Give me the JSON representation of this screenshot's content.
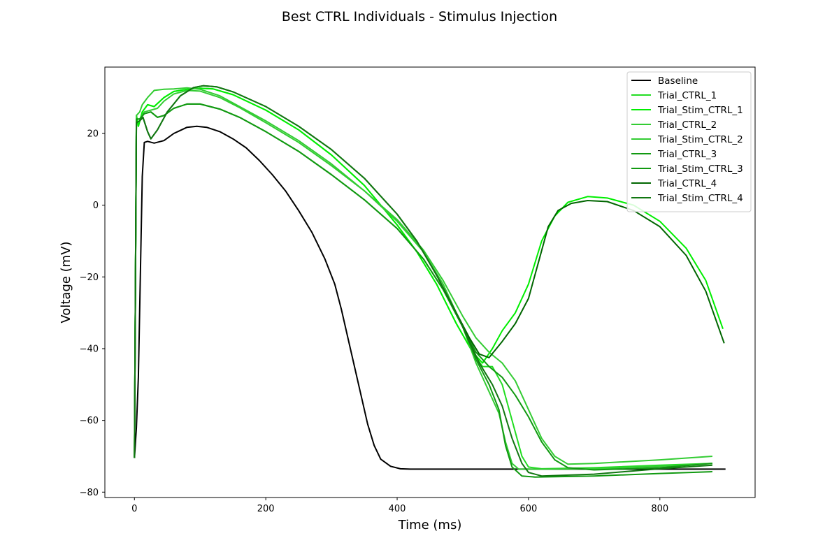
{
  "chart_data": {
    "type": "line",
    "title": "Best CTRL Individuals - Stimulus Injection",
    "xlabel": "Time (ms)",
    "ylabel": "Voltage (mV)",
    "xlim": [
      -45,
      945
    ],
    "ylim": [
      -81.5,
      38.5
    ],
    "xticks": [
      0,
      200,
      400,
      600,
      800
    ],
    "yticks": [
      -80,
      -60,
      -40,
      -20,
      0,
      20
    ],
    "grid": false,
    "legend_position": "top-right",
    "series": [
      {
        "name": "Baseline",
        "color": "#000000",
        "points": [
          [
            0,
            -70.5
          ],
          [
            3,
            -62
          ],
          [
            6,
            -48
          ],
          [
            9,
            -20
          ],
          [
            12,
            8
          ],
          [
            15,
            17.5
          ],
          [
            20,
            17.8
          ],
          [
            30,
            17.3
          ],
          [
            45,
            18
          ],
          [
            60,
            20
          ],
          [
            80,
            21.7
          ],
          [
            95,
            22
          ],
          [
            110,
            21.7
          ],
          [
            130,
            20.5
          ],
          [
            150,
            18.5
          ],
          [
            170,
            16
          ],
          [
            190,
            12.5
          ],
          [
            210,
            8.5
          ],
          [
            230,
            4
          ],
          [
            250,
            -1.5
          ],
          [
            270,
            -7.5
          ],
          [
            290,
            -15
          ],
          [
            305,
            -22
          ],
          [
            315,
            -29
          ],
          [
            325,
            -37
          ],
          [
            335,
            -45
          ],
          [
            345,
            -53
          ],
          [
            355,
            -61
          ],
          [
            365,
            -67
          ],
          [
            375,
            -70.8
          ],
          [
            390,
            -72.8
          ],
          [
            405,
            -73.5
          ],
          [
            420,
            -73.6
          ],
          [
            500,
            -73.6
          ],
          [
            600,
            -73.6
          ],
          [
            700,
            -73.6
          ],
          [
            800,
            -73.6
          ],
          [
            900,
            -73.6
          ]
        ]
      },
      {
        "name": "Trial_CTRL_1",
        "color": "#22dd22",
        "points": [
          [
            0,
            -70.5
          ],
          [
            3,
            25
          ],
          [
            6,
            22
          ],
          [
            12,
            26
          ],
          [
            20,
            28
          ],
          [
            30,
            27.5
          ],
          [
            45,
            30
          ],
          [
            60,
            31.7
          ],
          [
            80,
            32.3
          ],
          [
            100,
            32.6
          ],
          [
            120,
            32.4
          ],
          [
            150,
            30.8
          ],
          [
            200,
            26.5
          ],
          [
            250,
            21
          ],
          [
            300,
            14
          ],
          [
            350,
            5.5
          ],
          [
            400,
            -5.5
          ],
          [
            430,
            -13
          ],
          [
            460,
            -22
          ],
          [
            490,
            -33
          ],
          [
            515,
            -41
          ],
          [
            530,
            -45
          ],
          [
            545,
            -45
          ],
          [
            560,
            -50
          ],
          [
            575,
            -60
          ],
          [
            590,
            -70
          ],
          [
            600,
            -73
          ],
          [
            620,
            -73.5
          ],
          [
            700,
            -73.2
          ],
          [
            800,
            -72.5
          ],
          [
            880,
            -72
          ]
        ]
      },
      {
        "name": "Trial_Stim_CTRL_1",
        "color": "#00ee00",
        "points": [
          [
            0,
            -70.5
          ],
          [
            3,
            25
          ],
          [
            6,
            22
          ],
          [
            12,
            26
          ],
          [
            20,
            28
          ],
          [
            30,
            27.5
          ],
          [
            45,
            30
          ],
          [
            60,
            31.7
          ],
          [
            80,
            32.3
          ],
          [
            100,
            32.6
          ],
          [
            120,
            32.4
          ],
          [
            150,
            30.8
          ],
          [
            200,
            26.5
          ],
          [
            250,
            21
          ],
          [
            300,
            14
          ],
          [
            350,
            5.5
          ],
          [
            400,
            -5.5
          ],
          [
            430,
            -13
          ],
          [
            460,
            -22
          ],
          [
            490,
            -33
          ],
          [
            515,
            -41
          ],
          [
            530,
            -44
          ],
          [
            545,
            -40
          ],
          [
            560,
            -35
          ],
          [
            580,
            -30
          ],
          [
            600,
            -22
          ],
          [
            620,
            -10
          ],
          [
            640,
            -3
          ],
          [
            660,
            0.8
          ],
          [
            690,
            2.4
          ],
          [
            720,
            2
          ],
          [
            760,
            0
          ],
          [
            800,
            -4.5
          ],
          [
            840,
            -12
          ],
          [
            870,
            -21
          ],
          [
            896,
            -34.5
          ]
        ]
      },
      {
        "name": "Trial_CTRL_2",
        "color": "#33cc33",
        "points": [
          [
            0,
            -70.5
          ],
          [
            3,
            24
          ],
          [
            8,
            24
          ],
          [
            15,
            26
          ],
          [
            25,
            26.5
          ],
          [
            35,
            27
          ],
          [
            45,
            29
          ],
          [
            60,
            31
          ],
          [
            80,
            32
          ],
          [
            100,
            31.8
          ],
          [
            130,
            30
          ],
          [
            160,
            27.2
          ],
          [
            200,
            23
          ],
          [
            250,
            17.5
          ],
          [
            300,
            11
          ],
          [
            350,
            4
          ],
          [
            400,
            -4
          ],
          [
            440,
            -12.5
          ],
          [
            470,
            -21
          ],
          [
            500,
            -31
          ],
          [
            520,
            -37
          ],
          [
            540,
            -41
          ],
          [
            560,
            -44
          ],
          [
            580,
            -49
          ],
          [
            600,
            -57
          ],
          [
            620,
            -65
          ],
          [
            640,
            -70
          ],
          [
            660,
            -72.2
          ],
          [
            700,
            -72
          ],
          [
            800,
            -71
          ],
          [
            880,
            -70
          ]
        ]
      },
      {
        "name": "Trial_Stim_CTRL_2",
        "color": "#33cc33",
        "points": [
          [
            0,
            -70.5
          ],
          [
            3,
            25
          ],
          [
            8,
            26
          ],
          [
            12,
            28
          ],
          [
            20,
            30
          ],
          [
            30,
            32
          ],
          [
            45,
            32.3
          ],
          [
            60,
            32.4
          ],
          [
            80,
            32.7
          ],
          [
            100,
            32.3
          ],
          [
            130,
            30.5
          ],
          [
            160,
            27.5
          ],
          [
            200,
            23.5
          ],
          [
            250,
            18
          ],
          [
            300,
            11.5
          ],
          [
            350,
            4
          ],
          [
            400,
            -4.5
          ],
          [
            440,
            -13
          ],
          [
            470,
            -22
          ],
          [
            500,
            -34
          ],
          [
            520,
            -44
          ],
          [
            540,
            -52
          ],
          [
            555,
            -58
          ],
          [
            565,
            -66
          ],
          [
            575,
            -72
          ],
          [
            585,
            -73.6
          ],
          [
            620,
            -73.6
          ],
          [
            700,
            -73.5
          ],
          [
            800,
            -72.8
          ],
          [
            880,
            -72
          ]
        ]
      },
      {
        "name": "Trial_CTRL_3",
        "color": "#119911",
        "points": [
          [
            0,
            -70.5
          ],
          [
            3,
            24
          ],
          [
            8,
            24
          ],
          [
            15,
            25.5
          ],
          [
            25,
            26
          ],
          [
            35,
            24.5
          ],
          [
            45,
            25
          ],
          [
            60,
            27
          ],
          [
            80,
            28.2
          ],
          [
            100,
            28.2
          ],
          [
            130,
            26.8
          ],
          [
            160,
            24.5
          ],
          [
            200,
            20.5
          ],
          [
            250,
            15
          ],
          [
            300,
            8.5
          ],
          [
            350,
            1.5
          ],
          [
            400,
            -6.5
          ],
          [
            440,
            -15
          ],
          [
            470,
            -23.5
          ],
          [
            500,
            -34
          ],
          [
            520,
            -41
          ],
          [
            540,
            -45
          ],
          [
            560,
            -48
          ],
          [
            580,
            -53
          ],
          [
            600,
            -59
          ],
          [
            620,
            -66
          ],
          [
            640,
            -71
          ],
          [
            660,
            -73.2
          ],
          [
            700,
            -73.8
          ],
          [
            800,
            -73.2
          ],
          [
            880,
            -72
          ]
        ]
      },
      {
        "name": "Trial_Stim_CTRL_3",
        "color": "#119911",
        "points": [
          [
            0,
            -70.5
          ],
          [
            3,
            24
          ],
          [
            8,
            24
          ],
          [
            15,
            25.5
          ],
          [
            25,
            26
          ],
          [
            35,
            24.5
          ],
          [
            45,
            25
          ],
          [
            60,
            27
          ],
          [
            80,
            28.2
          ],
          [
            100,
            28.2
          ],
          [
            130,
            26.8
          ],
          [
            160,
            24.5
          ],
          [
            200,
            20.5
          ],
          [
            250,
            15
          ],
          [
            300,
            8.5
          ],
          [
            350,
            1.5
          ],
          [
            400,
            -6.5
          ],
          [
            440,
            -15
          ],
          [
            470,
            -23.5
          ],
          [
            500,
            -34
          ],
          [
            520,
            -43
          ],
          [
            540,
            -50
          ],
          [
            555,
            -57
          ],
          [
            565,
            -67
          ],
          [
            575,
            -73
          ],
          [
            590,
            -75.5
          ],
          [
            610,
            -75.8
          ],
          [
            700,
            -75.5
          ],
          [
            800,
            -74.8
          ],
          [
            880,
            -74.3
          ]
        ]
      },
      {
        "name": "Trial_CTRL_4",
        "color": "#006600",
        "points": [
          [
            0,
            -70.5
          ],
          [
            3,
            23
          ],
          [
            8,
            23.5
          ],
          [
            13,
            24.5
          ],
          [
            20,
            20.5
          ],
          [
            25,
            18.5
          ],
          [
            35,
            21
          ],
          [
            50,
            26
          ],
          [
            70,
            30.5
          ],
          [
            90,
            32.8
          ],
          [
            105,
            33.3
          ],
          [
            125,
            33
          ],
          [
            150,
            31.6
          ],
          [
            200,
            27.5
          ],
          [
            250,
            22
          ],
          [
            300,
            15.5
          ],
          [
            350,
            7.5
          ],
          [
            400,
            -2.5
          ],
          [
            430,
            -10
          ],
          [
            460,
            -19.5
          ],
          [
            490,
            -30
          ],
          [
            510,
            -37
          ],
          [
            525,
            -41.5
          ],
          [
            540,
            -42.5
          ],
          [
            560,
            -38
          ],
          [
            580,
            -33
          ],
          [
            600,
            -26
          ],
          [
            615,
            -16
          ],
          [
            630,
            -6
          ],
          [
            645,
            -1.5
          ],
          [
            665,
            0.5
          ],
          [
            690,
            1.3
          ],
          [
            720,
            1
          ],
          [
            760,
            -1.5
          ],
          [
            800,
            -6
          ],
          [
            840,
            -14
          ],
          [
            870,
            -24
          ],
          [
            898,
            -38.5
          ]
        ]
      },
      {
        "name": "Trial_Stim_CTRL_4",
        "color": "#117711",
        "points": [
          [
            0,
            -70.5
          ],
          [
            3,
            23
          ],
          [
            8,
            23.5
          ],
          [
            13,
            24.5
          ],
          [
            20,
            20.5
          ],
          [
            25,
            18.5
          ],
          [
            35,
            21
          ],
          [
            50,
            26
          ],
          [
            70,
            30.5
          ],
          [
            90,
            32.8
          ],
          [
            105,
            33.3
          ],
          [
            125,
            33
          ],
          [
            150,
            31.6
          ],
          [
            200,
            27.5
          ],
          [
            250,
            22
          ],
          [
            300,
            15.5
          ],
          [
            350,
            7.5
          ],
          [
            400,
            -2.5
          ],
          [
            430,
            -10
          ],
          [
            460,
            -19.5
          ],
          [
            490,
            -30
          ],
          [
            510,
            -38
          ],
          [
            525,
            -44
          ],
          [
            545,
            -50
          ],
          [
            560,
            -56
          ],
          [
            575,
            -65
          ],
          [
            590,
            -72
          ],
          [
            600,
            -74.5
          ],
          [
            620,
            -75.5
          ],
          [
            700,
            -75
          ],
          [
            800,
            -73.5
          ],
          [
            880,
            -72.5
          ]
        ]
      }
    ]
  }
}
